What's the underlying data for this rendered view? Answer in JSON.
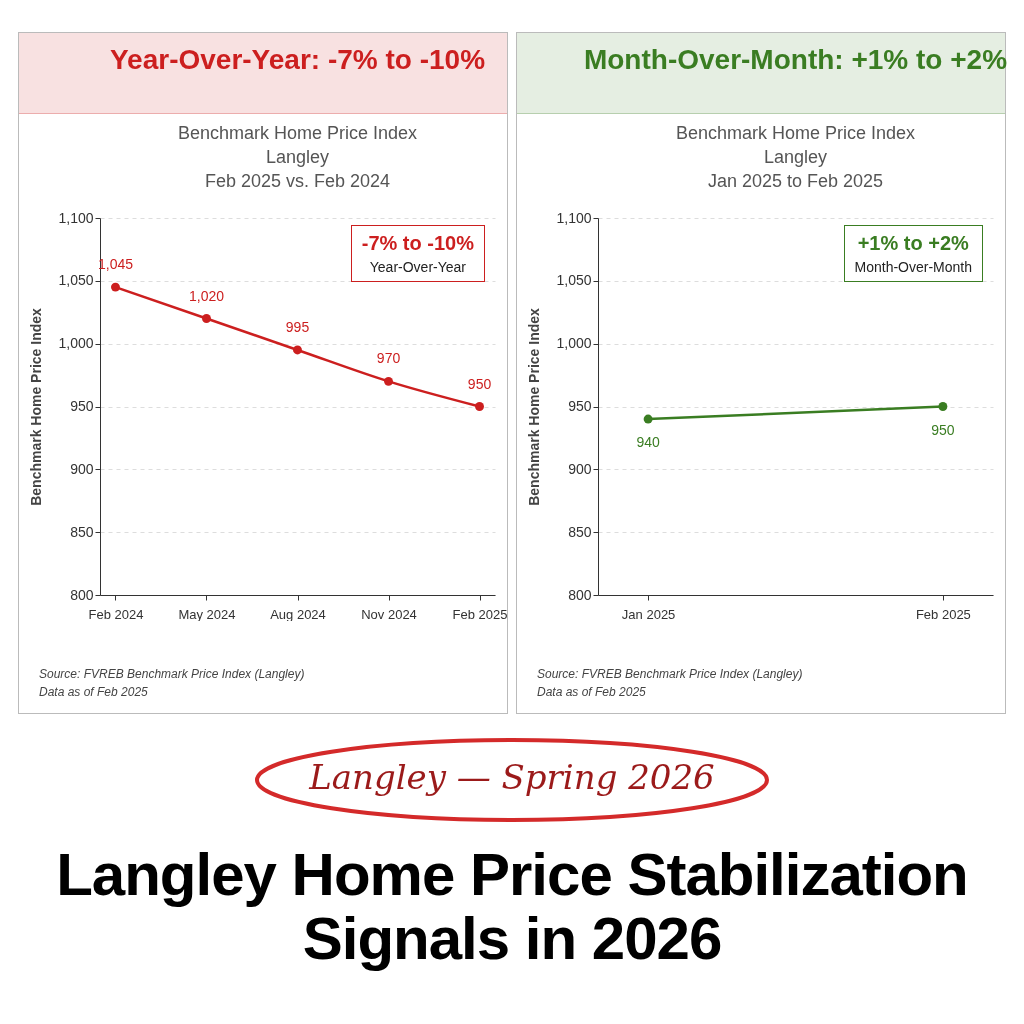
{
  "chart_data": [
    {
      "type": "line",
      "title": "Year-Over-Year: -7% to -10%",
      "subtitle": "Benchmark Home Price Index\nLangley\nFeb 2025 vs. Feb 2024",
      "ylabel": "Benchmark Home Price Index",
      "categories": [
        "Feb 2024",
        "May 2024",
        "Aug 2024",
        "Nov 2024",
        "Feb 2025"
      ],
      "series": [
        {
          "color": "#cc1f1f",
          "values": [
            1045,
            1020,
            995,
            970,
            950
          ],
          "value_labels": [
            "1,045",
            "1,020",
            "995",
            "970",
            "950"
          ]
        }
      ],
      "ylim": [
        800,
        1100
      ],
      "yticks": [
        800,
        850,
        900,
        950,
        {
          "value": 1000,
          "label": "1,000"
        },
        {
          "value": 1050,
          "label": "1,050"
        },
        {
          "value": 1100,
          "label": "1,100"
        }
      ],
      "grid": "y",
      "marker": "circle",
      "line_style": "solid",
      "annotations": [
        "-7% to -10%",
        "Year-Over-Year",
        "Source:  FVREB Benchmark Price Index (Langley)",
        "Data as of Feb 2025"
      ]
    },
    {
      "type": "line",
      "title": "Month-Over-Month: +1% to +2%",
      "subtitle": "Benchmark Home Price Index\nLangley\nJan 2025 to Feb 2025",
      "ylabel": "Benchmark Home Price Index",
      "categories": [
        "Jan 2025",
        "Feb 2025"
      ],
      "series": [
        {
          "color": "#3a7d22",
          "values": [
            940,
            950
          ]
        }
      ],
      "data_labels": true,
      "ylim": [
        800,
        1100
      ],
      "yticks": [
        800,
        850,
        900,
        950,
        {
          "value": 1000,
          "label": "1,000"
        },
        {
          "value": 1050,
          "label": "1,050"
        },
        {
          "value": 1100,
          "label": "1,100"
        }
      ],
      "grid": "y",
      "marker": "circle",
      "line_style": "solid",
      "annotations": [
        "+1% to +2%",
        "Month-Over-Month",
        "Source:  FVREB Benchmark Price Index (Langley)",
        "Data as of Feb 2025"
      ]
    },
    {
      "type": "other",
      "title": "Langley Home Price Stabilization Signals in 2026",
      "subtitle": "Langley — Spring 2026"
    }
  ]
}
